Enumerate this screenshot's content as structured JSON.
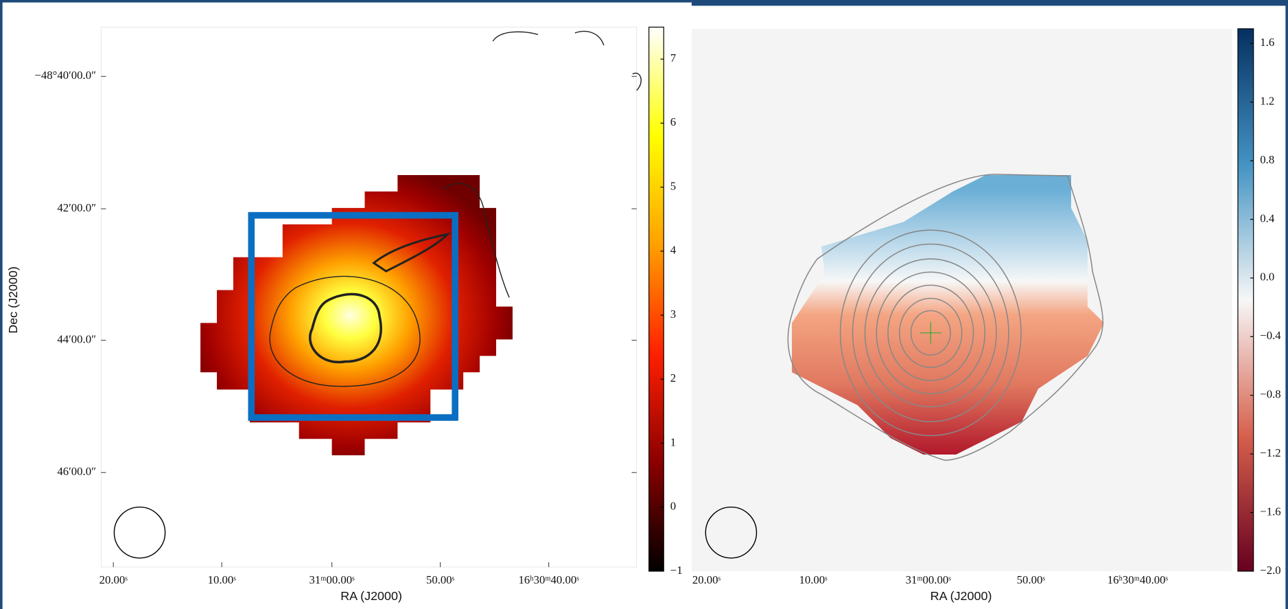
{
  "chart_data": [
    {
      "type": "heatmap",
      "x_label": "RA (J2000)",
      "y_label": "Dec (J2000)",
      "xtick_labels": [
        "20.00ˢ",
        "10.00ˢ",
        "31ᵐ00.00ˢ",
        "50.00ˢ",
        "16ʰ30ᵐ40.00ˢ"
      ],
      "ytick_labels": [
        "−48°40′00.0″",
        "42′00.0″",
        "44′00.0″",
        "46′00.0″"
      ],
      "clim": [
        -1,
        7.5
      ],
      "cticks": [
        {
          "value": -1,
          "label": "−1"
        },
        0,
        1,
        2,
        3,
        4,
        5,
        6,
        7
      ],
      "colormap": [
        "#000000",
        "#8b0000",
        "#ff2000",
        "#ffa000",
        "#ffff00",
        "#ffffff"
      ]
    },
    {
      "type": "heatmap",
      "x_label": "RA (J2000)",
      "xtick_labels": [
        "20.00ˢ",
        "10.00ˢ",
        "31ᵐ00.00ˢ",
        "50.00ˢ",
        "16ʰ30ᵐ40.00ˢ"
      ],
      "clim": [
        -2.0,
        1.7
      ],
      "cticks": [
        {
          "value": -2.0,
          "label": "−2.0"
        },
        {
          "value": -1.6,
          "label": "−1.6"
        },
        {
          "value": -1.2,
          "label": "−1.2"
        },
        {
          "value": -0.8,
          "label": "−0.8"
        },
        {
          "value": -0.4,
          "label": "−0.4"
        },
        {
          "value": 0.0,
          "label": "0.0"
        },
        0.4,
        0.8,
        1.2,
        1.6
      ],
      "colormap": [
        "#67001f",
        "#d6604d",
        "#f7f7f7",
        "#4393c3",
        "#053061"
      ]
    }
  ]
}
